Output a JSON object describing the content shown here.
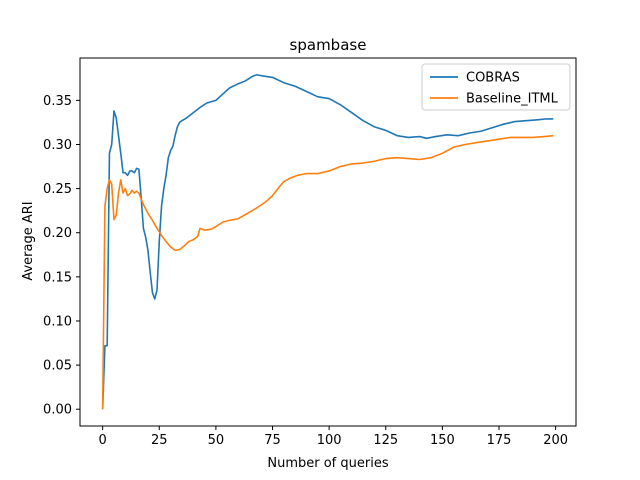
{
  "chart_data": {
    "type": "line",
    "title": "spambase",
    "xlabel": "Number of queries",
    "ylabel": "Average ARI",
    "xlim": [
      -10,
      209
    ],
    "ylim": [
      -0.019,
      0.398
    ],
    "xticks": [
      0,
      25,
      50,
      75,
      100,
      125,
      150,
      175,
      200
    ],
    "xtick_labels": [
      "0",
      "25",
      "50",
      "75",
      "100",
      "125",
      "150",
      "175",
      "200"
    ],
    "yticks": [
      0.0,
      0.05,
      0.1,
      0.15,
      0.2,
      0.25,
      0.3,
      0.35
    ],
    "ytick_labels": [
      "0.00",
      "0.05",
      "0.10",
      "0.15",
      "0.20",
      "0.25",
      "0.30",
      "0.35"
    ],
    "legend_position": "top-right",
    "series": [
      {
        "name": "COBRAS",
        "color": "#1f77b4",
        "points": [
          [
            0,
            0.0
          ],
          [
            1,
            0.072
          ],
          [
            2,
            0.072
          ],
          [
            3,
            0.29
          ],
          [
            4,
            0.3
          ],
          [
            5,
            0.338
          ],
          [
            6,
            0.33
          ],
          [
            7,
            0.31
          ],
          [
            8,
            0.29
          ],
          [
            9,
            0.268
          ],
          [
            10,
            0.268
          ],
          [
            11,
            0.265
          ],
          [
            12,
            0.27
          ],
          [
            13,
            0.27
          ],
          [
            14,
            0.268
          ],
          [
            15,
            0.273
          ],
          [
            16,
            0.272
          ],
          [
            17,
            0.24
          ],
          [
            18,
            0.205
          ],
          [
            19,
            0.195
          ],
          [
            20,
            0.18
          ],
          [
            21,
            0.155
          ],
          [
            22,
            0.132
          ],
          [
            23,
            0.125
          ],
          [
            24,
            0.135
          ],
          [
            25,
            0.19
          ],
          [
            26,
            0.23
          ],
          [
            27,
            0.25
          ],
          [
            28,
            0.265
          ],
          [
            29,
            0.285
          ],
          [
            30,
            0.293
          ],
          [
            31,
            0.298
          ],
          [
            32,
            0.31
          ],
          [
            33,
            0.32
          ],
          [
            34,
            0.325
          ],
          [
            35,
            0.327
          ],
          [
            37,
            0.33
          ],
          [
            40,
            0.336
          ],
          [
            43,
            0.342
          ],
          [
            46,
            0.347
          ],
          [
            50,
            0.35
          ],
          [
            53,
            0.357
          ],
          [
            56,
            0.364
          ],
          [
            60,
            0.369
          ],
          [
            63,
            0.372
          ],
          [
            66,
            0.377
          ],
          [
            68,
            0.379
          ],
          [
            70,
            0.378
          ],
          [
            75,
            0.376
          ],
          [
            80,
            0.37
          ],
          [
            85,
            0.366
          ],
          [
            90,
            0.36
          ],
          [
            95,
            0.354
          ],
          [
            100,
            0.352
          ],
          [
            105,
            0.345
          ],
          [
            110,
            0.336
          ],
          [
            115,
            0.327
          ],
          [
            120,
            0.32
          ],
          [
            125,
            0.316
          ],
          [
            130,
            0.31
          ],
          [
            135,
            0.308
          ],
          [
            140,
            0.309
          ],
          [
            143,
            0.307
          ],
          [
            147,
            0.309
          ],
          [
            152,
            0.311
          ],
          [
            157,
            0.31
          ],
          [
            162,
            0.313
          ],
          [
            167,
            0.315
          ],
          [
            172,
            0.319
          ],
          [
            177,
            0.323
          ],
          [
            182,
            0.326
          ],
          [
            187,
            0.327
          ],
          [
            192,
            0.328
          ],
          [
            196,
            0.329
          ],
          [
            199,
            0.329
          ]
        ]
      },
      {
        "name": "Baseline_ITML",
        "color": "#ff7f0e",
        "points": [
          [
            0,
            0.0
          ],
          [
            1,
            0.23
          ],
          [
            2,
            0.25
          ],
          [
            3,
            0.26
          ],
          [
            4,
            0.255
          ],
          [
            5,
            0.215
          ],
          [
            6,
            0.22
          ],
          [
            7,
            0.245
          ],
          [
            8,
            0.26
          ],
          [
            9,
            0.245
          ],
          [
            10,
            0.25
          ],
          [
            11,
            0.242
          ],
          [
            12,
            0.244
          ],
          [
            13,
            0.248
          ],
          [
            14,
            0.245
          ],
          [
            15,
            0.247
          ],
          [
            16,
            0.245
          ],
          [
            17,
            0.238
          ],
          [
            18,
            0.232
          ],
          [
            20,
            0.222
          ],
          [
            22,
            0.214
          ],
          [
            24,
            0.205
          ],
          [
            26,
            0.197
          ],
          [
            28,
            0.19
          ],
          [
            30,
            0.184
          ],
          [
            32,
            0.18
          ],
          [
            34,
            0.181
          ],
          [
            36,
            0.185
          ],
          [
            38,
            0.19
          ],
          [
            40,
            0.192
          ],
          [
            42,
            0.196
          ],
          [
            43,
            0.205
          ],
          [
            45,
            0.203
          ],
          [
            48,
            0.204
          ],
          [
            50,
            0.207
          ],
          [
            53,
            0.212
          ],
          [
            56,
            0.214
          ],
          [
            60,
            0.216
          ],
          [
            64,
            0.222
          ],
          [
            68,
            0.228
          ],
          [
            72,
            0.235
          ],
          [
            75,
            0.242
          ],
          [
            78,
            0.252
          ],
          [
            80,
            0.258
          ],
          [
            83,
            0.262
          ],
          [
            86,
            0.265
          ],
          [
            90,
            0.267
          ],
          [
            95,
            0.267
          ],
          [
            100,
            0.27
          ],
          [
            105,
            0.275
          ],
          [
            110,
            0.278
          ],
          [
            115,
            0.279
          ],
          [
            120,
            0.281
          ],
          [
            125,
            0.284
          ],
          [
            130,
            0.285
          ],
          [
            135,
            0.284
          ],
          [
            140,
            0.283
          ],
          [
            145,
            0.285
          ],
          [
            150,
            0.29
          ],
          [
            155,
            0.297
          ],
          [
            160,
            0.3
          ],
          [
            165,
            0.302
          ],
          [
            170,
            0.304
          ],
          [
            175,
            0.306
          ],
          [
            180,
            0.308
          ],
          [
            185,
            0.308
          ],
          [
            190,
            0.308
          ],
          [
            195,
            0.309
          ],
          [
            199,
            0.31
          ]
        ]
      }
    ]
  }
}
